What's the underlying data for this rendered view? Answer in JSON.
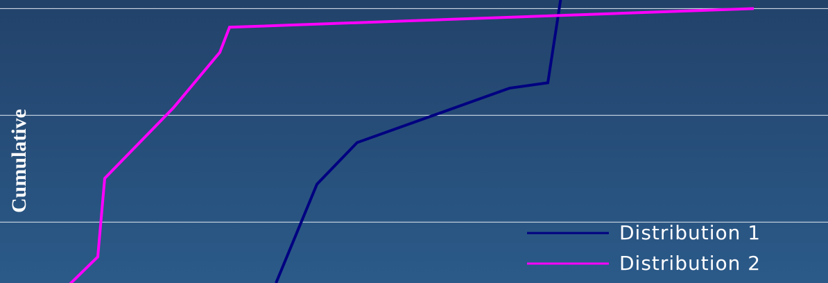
{
  "chart_data": {
    "type": "line",
    "y_label": "Cumulative",
    "xlim": [
      0,
      1194
    ],
    "ylim": [
      0.486,
      1.016
    ],
    "yticks": [
      0.6,
      0.8,
      1.0
    ],
    "grid": true,
    "legend": "lower right",
    "series": [
      {
        "name": "Distribution 1",
        "color": "#000080",
        "x": [
          398,
          457,
          515,
          735,
          790,
          810
        ],
        "values": [
          0.486,
          0.671,
          0.749,
          0.851,
          0.861,
          1.03
        ]
      },
      {
        "name": "Distribution 2",
        "color": "#ff00ff",
        "x": [
          100,
          141,
          151,
          250,
          317,
          331,
          1087
        ],
        "values": [
          0.483,
          0.535,
          0.682,
          0.814,
          0.918,
          0.965,
          1.0
        ]
      }
    ]
  }
}
